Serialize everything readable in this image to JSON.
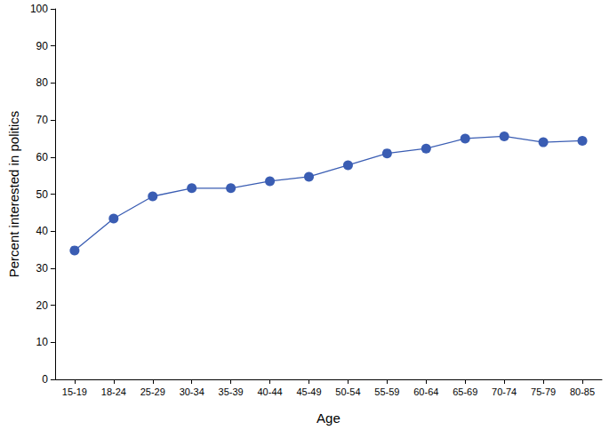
{
  "chart_data": {
    "type": "line",
    "x_label": "Age",
    "y_label": "Percent interested in politics",
    "categories": [
      "15-19",
      "18-24",
      "25-29",
      "30-34",
      "35-39",
      "40-44",
      "45-49",
      "50-54",
      "55-59",
      "60-64",
      "65-69",
      "70-74",
      "75-79",
      "80-85"
    ],
    "values": [
      34.8,
      43.4,
      49.4,
      51.6,
      51.6,
      53.5,
      54.7,
      57.8,
      61.0,
      62.3,
      65.0,
      65.6,
      64.0,
      64.4
    ],
    "color": "#3a5db3",
    "marker": "circle",
    "ylim": [
      0,
      100
    ],
    "yticks": [
      0,
      10,
      20,
      30,
      40,
      50,
      60,
      70,
      80,
      90,
      100
    ],
    "grid": false
  }
}
